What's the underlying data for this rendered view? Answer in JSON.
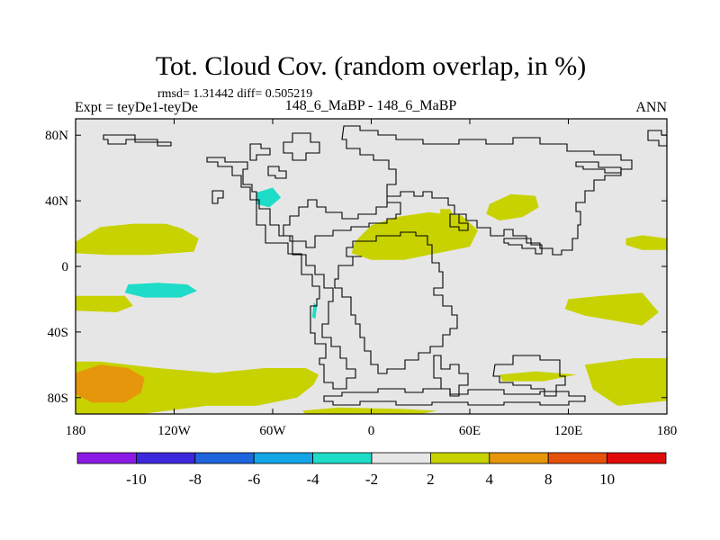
{
  "chart_data": {
    "type": "heatmap",
    "title": "Tot. Cloud Cov. (random overlap, in %)",
    "stats": "rmsd= 1.31442 diff= 0.505219",
    "left_label": "Expt = teyDe1-teyDe",
    "center_label": "148_6_MaBP - 148_6_MaBP",
    "right_label": "ANN",
    "xlim": [
      -180,
      180
    ],
    "ylim": [
      -90,
      90
    ],
    "x_ticks": [
      -180,
      -120,
      -60,
      0,
      60,
      120,
      180
    ],
    "x_tick_labels": [
      "180",
      "120W",
      "60W",
      "0",
      "60E",
      "120E",
      "180"
    ],
    "y_ticks": [
      80,
      40,
      0,
      -40,
      -80
    ],
    "y_tick_labels": [
      "80N",
      "40N",
      "0",
      "40S",
      "80S"
    ],
    "background_color": "#e6e6e6",
    "colorbar": {
      "colors": [
        "#8c1ae6",
        "#3c28dc",
        "#1e64dc",
        "#14a5e6",
        "#1edcc8",
        "#e6e6e6",
        "#c8d200",
        "#e6960a",
        "#e6500a",
        "#e10a0a"
      ],
      "labels": [
        "-10",
        "-8",
        "-6",
        "-4",
        "-2",
        "2",
        "4",
        "8",
        "10"
      ]
    },
    "regions": [
      {
        "level": "2 to 4",
        "color": "#c8d200",
        "points": [
          [
            -180,
            15
          ],
          [
            -165,
            24
          ],
          [
            -145,
            26
          ],
          [
            -125,
            26
          ],
          [
            -115,
            23
          ],
          [
            -105,
            17
          ],
          [
            -108,
            9
          ],
          [
            -135,
            7
          ],
          [
            -160,
            7
          ],
          [
            -180,
            8
          ]
        ]
      },
      {
        "level": "2 to 4",
        "color": "#c8d200",
        "points": [
          [
            -180,
            -18
          ],
          [
            -150,
            -18
          ],
          [
            -145,
            -24
          ],
          [
            -155,
            -28
          ],
          [
            -180,
            -27
          ]
        ]
      },
      {
        "level": "2 to 4",
        "color": "#c8d200",
        "points": [
          [
            -180,
            -58
          ],
          [
            -165,
            -58
          ],
          [
            -130,
            -62
          ],
          [
            -95,
            -65
          ],
          [
            -65,
            -62
          ],
          [
            -40,
            -62
          ],
          [
            -32,
            -66
          ],
          [
            -35,
            -72
          ],
          [
            -45,
            -80
          ],
          [
            -70,
            -85
          ],
          [
            -100,
            -85
          ],
          [
            -140,
            -90
          ],
          [
            -180,
            -90
          ]
        ]
      },
      {
        "level": "2 to 4",
        "color": "#c8d200",
        "points": [
          [
            -42,
            -88
          ],
          [
            -20,
            -86
          ],
          [
            20,
            -87
          ],
          [
            40,
            -88
          ],
          [
            30,
            -90
          ],
          [
            -40,
            -90
          ]
        ]
      },
      {
        "level": "2 to 4",
        "color": "#c8d200",
        "points": [
          [
            -10,
            15
          ],
          [
            0,
            25
          ],
          [
            15,
            30
          ],
          [
            35,
            33
          ],
          [
            55,
            31
          ],
          [
            65,
            22
          ],
          [
            60,
            12
          ],
          [
            40,
            8
          ],
          [
            20,
            4
          ],
          [
            0,
            4
          ],
          [
            -12,
            8
          ]
        ]
      },
      {
        "level": "2 to 4",
        "color": "#c8d200",
        "points": [
          [
            72,
            38
          ],
          [
            85,
            44
          ],
          [
            100,
            43
          ],
          [
            102,
            36
          ],
          [
            92,
            30
          ],
          [
            78,
            28
          ],
          [
            70,
            32
          ]
        ]
      },
      {
        "level": "2 to 4",
        "color": "#c8d200",
        "points": [
          [
            42,
            35
          ],
          [
            48,
            35
          ],
          [
            50,
            31
          ],
          [
            45,
            29
          ],
          [
            42,
            31
          ]
        ]
      },
      {
        "level": "2 to 4",
        "color": "#c8d200",
        "points": [
          [
            155,
            17
          ],
          [
            165,
            19
          ],
          [
            180,
            17
          ],
          [
            180,
            10
          ],
          [
            165,
            10
          ],
          [
            155,
            13
          ]
        ]
      },
      {
        "level": "2 to 4",
        "color": "#c8d200",
        "points": [
          [
            120,
            -20
          ],
          [
            140,
            -18
          ],
          [
            165,
            -16
          ],
          [
            175,
            -28
          ],
          [
            165,
            -36
          ],
          [
            130,
            -30
          ],
          [
            118,
            -26
          ]
        ]
      },
      {
        "level": "2 to 4",
        "color": "#c8d200",
        "points": [
          [
            130,
            -60
          ],
          [
            160,
            -56
          ],
          [
            180,
            -56
          ],
          [
            180,
            -82
          ],
          [
            150,
            -85
          ],
          [
            135,
            -75
          ]
        ]
      },
      {
        "level": "2 to 4",
        "color": "#c8d200",
        "points": [
          [
            78,
            -66
          ],
          [
            100,
            -64
          ],
          [
            125,
            -66
          ],
          [
            105,
            -70
          ],
          [
            80,
            -70
          ]
        ]
      },
      {
        "level": "4 to 8",
        "color": "#e6960a",
        "points": [
          [
            -180,
            -65
          ],
          [
            -165,
            -60
          ],
          [
            -148,
            -62
          ],
          [
            -138,
            -68
          ],
          [
            -140,
            -77
          ],
          [
            -150,
            -83
          ],
          [
            -170,
            -83
          ],
          [
            -180,
            -78
          ]
        ]
      },
      {
        "level": "-4 to -2",
        "color": "#1edcc8",
        "points": [
          [
            -148,
            -11
          ],
          [
            -130,
            -10
          ],
          [
            -112,
            -11
          ],
          [
            -106,
            -15
          ],
          [
            -116,
            -19
          ],
          [
            -138,
            -19
          ],
          [
            -150,
            -16
          ]
        ]
      },
      {
        "level": "-4 to -2",
        "color": "#1edcc8",
        "points": [
          [
            -70,
            45
          ],
          [
            -60,
            48
          ],
          [
            -55,
            42
          ],
          [
            -62,
            36
          ],
          [
            -70,
            38
          ]
        ]
      },
      {
        "level": "-4 to -2",
        "color": "#1edcc8",
        "points": [
          [
            -35,
            -22
          ],
          [
            -33,
            -24
          ],
          [
            -34,
            -32
          ],
          [
            -36,
            -31
          ]
        ]
      }
    ]
  }
}
